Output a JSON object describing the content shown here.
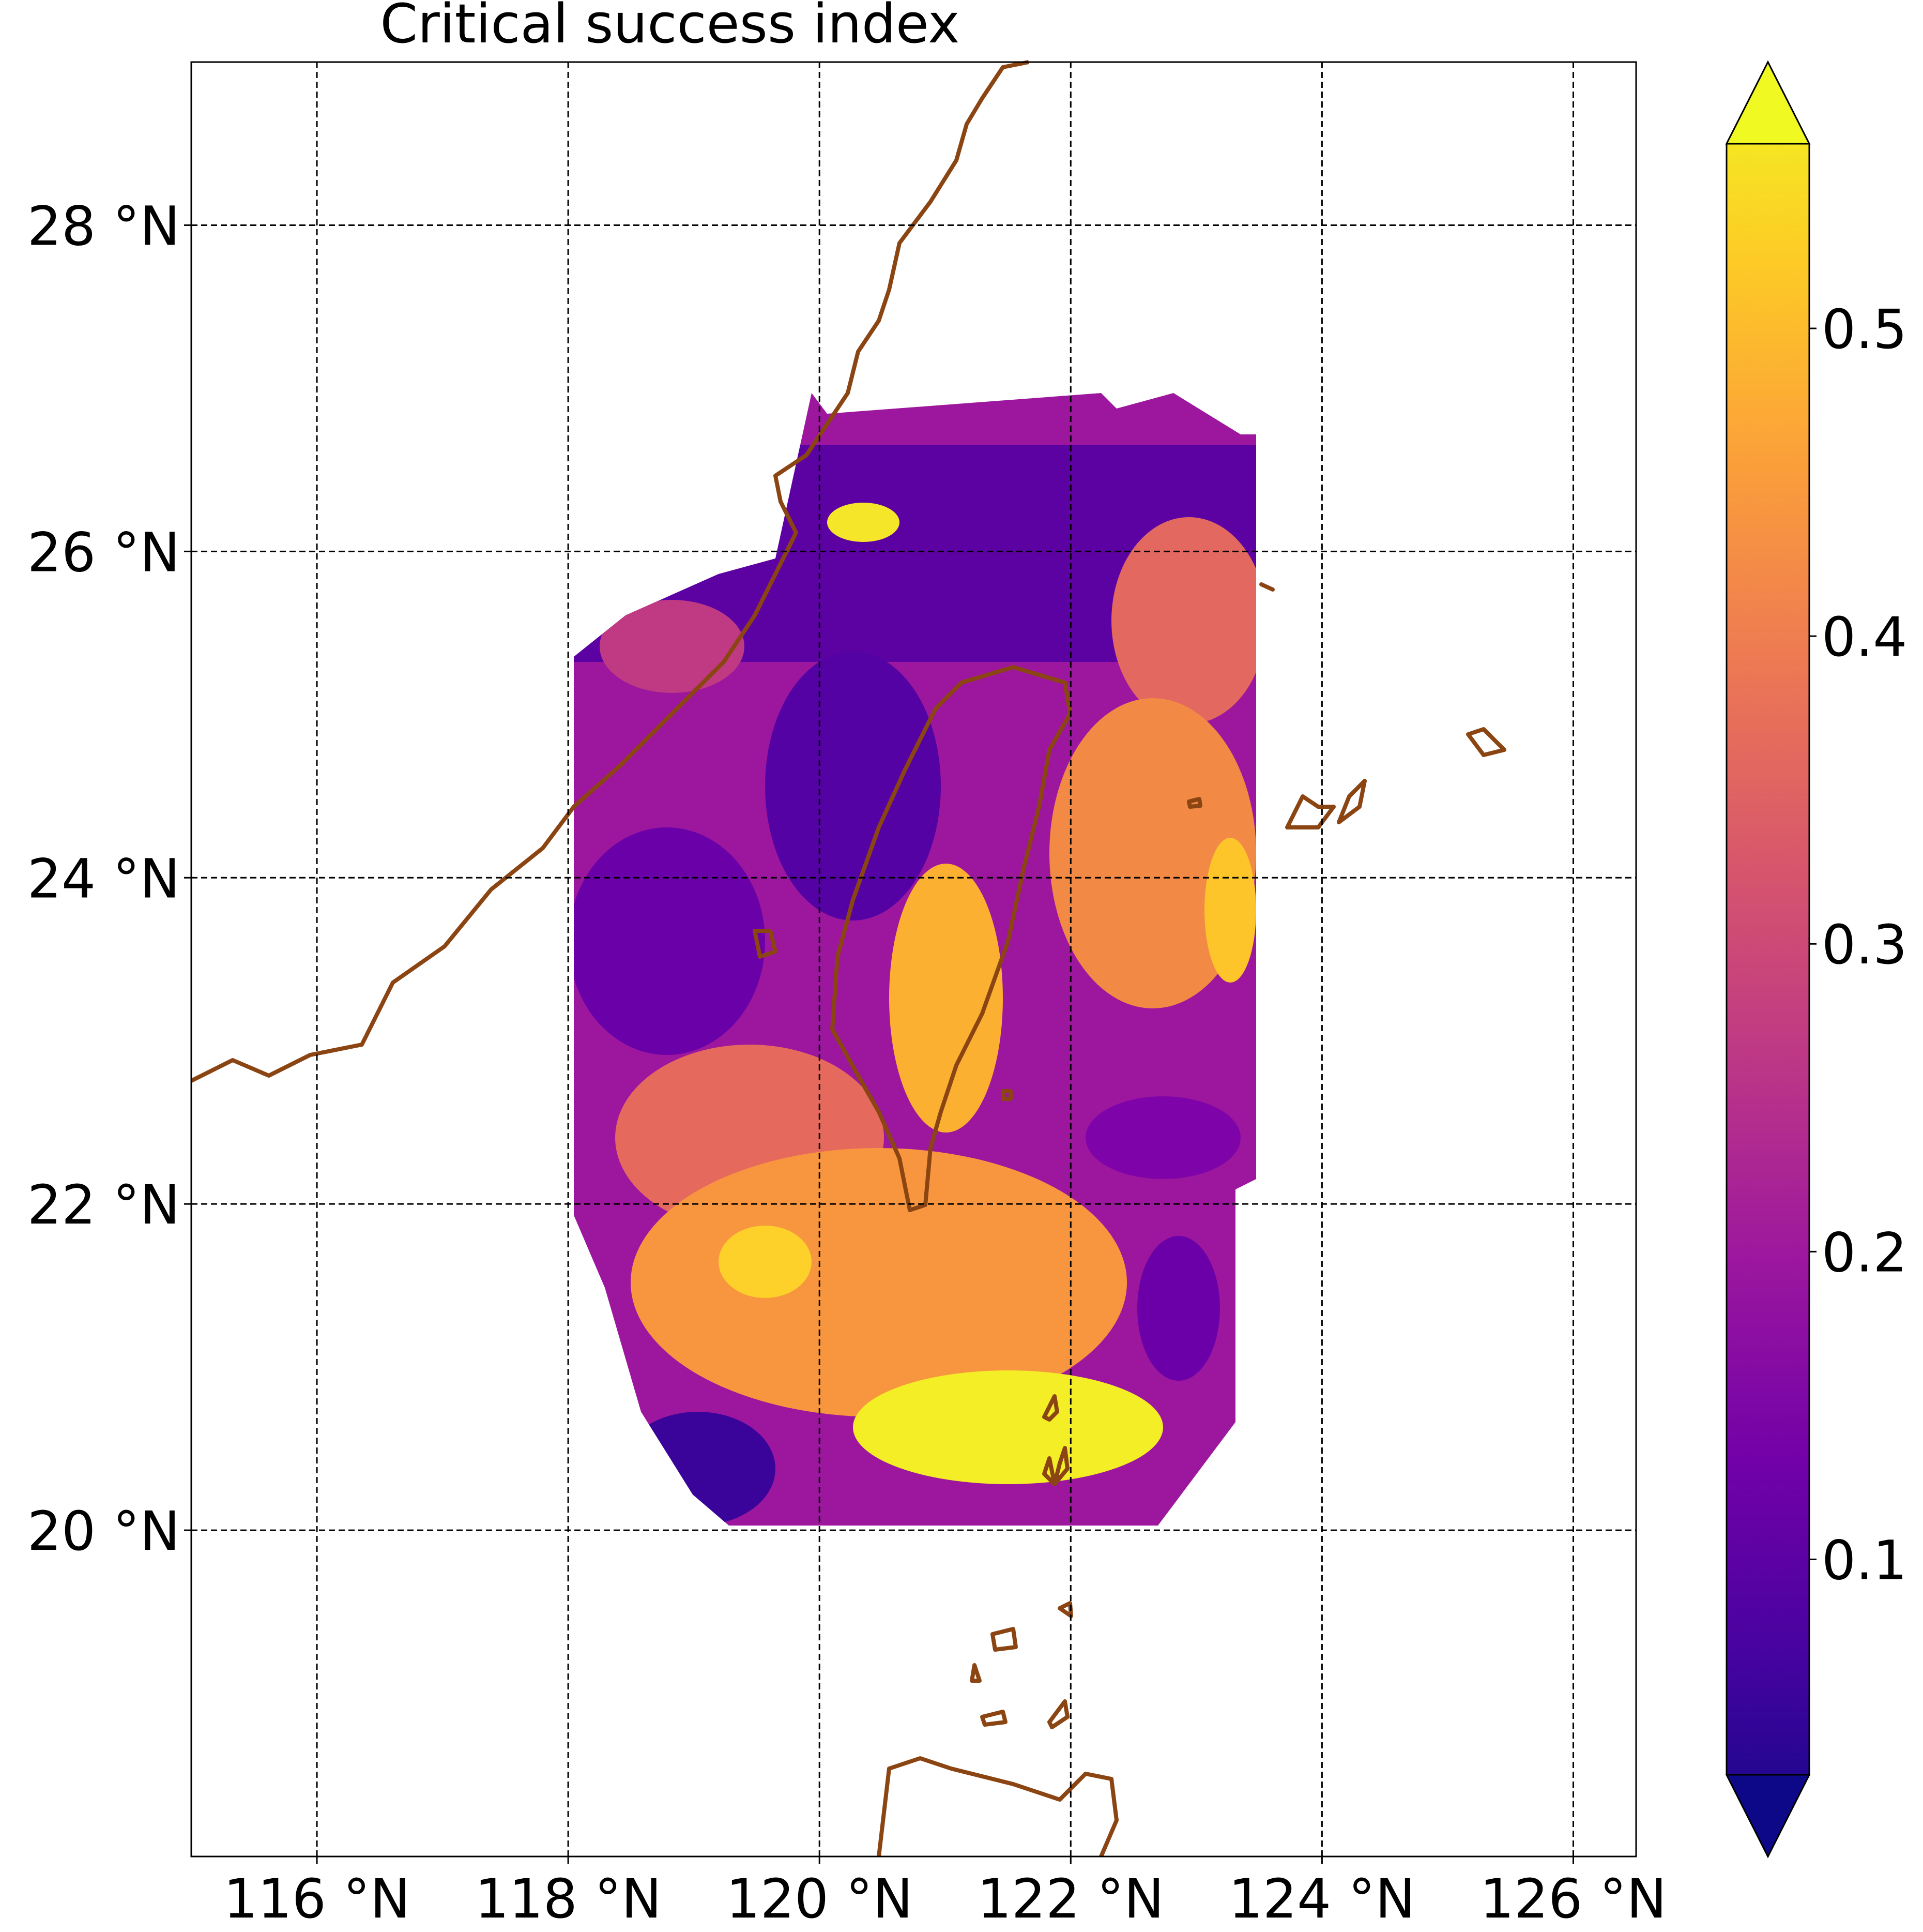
{
  "title": "Critical success index",
  "map": {
    "lon_range": [
      115,
      126.5
    ],
    "lat_range": [
      18,
      29
    ],
    "lon_ticks": [
      {
        "value": 116,
        "label": "116 °N"
      },
      {
        "value": 118,
        "label": "118 °N"
      },
      {
        "value": 120,
        "label": "120 °N"
      },
      {
        "value": 122,
        "label": "122 °N"
      },
      {
        "value": 124,
        "label": "124 °N"
      },
      {
        "value": 126,
        "label": "126 °N"
      }
    ],
    "lat_ticks": [
      {
        "value": 20,
        "label": "20 °N"
      },
      {
        "value": 22,
        "label": "22 °N"
      },
      {
        "value": 24,
        "label": "24 °N"
      },
      {
        "value": 26,
        "label": "26 °N"
      },
      {
        "value": 28,
        "label": "28 °N"
      }
    ],
    "gridlines": "dashed",
    "coastline_color": "#8B4513",
    "colormap": "plasma",
    "value_range": [
      0.03,
      0.56
    ],
    "background": "#ffffff"
  },
  "colorbar": {
    "ticks": [
      {
        "value": 0.1,
        "label": "0.1"
      },
      {
        "value": 0.2,
        "label": "0.2"
      },
      {
        "value": 0.3,
        "label": "0.3"
      },
      {
        "value": 0.4,
        "label": "0.4"
      },
      {
        "value": 0.5,
        "label": "0.5"
      }
    ],
    "extend": "both",
    "colors": [
      "#0d0887",
      "#46039f",
      "#7201a8",
      "#9c179e",
      "#bd3786",
      "#d8576b",
      "#ed7953",
      "#fb9f3a",
      "#fdca26",
      "#f0f921"
    ]
  }
}
